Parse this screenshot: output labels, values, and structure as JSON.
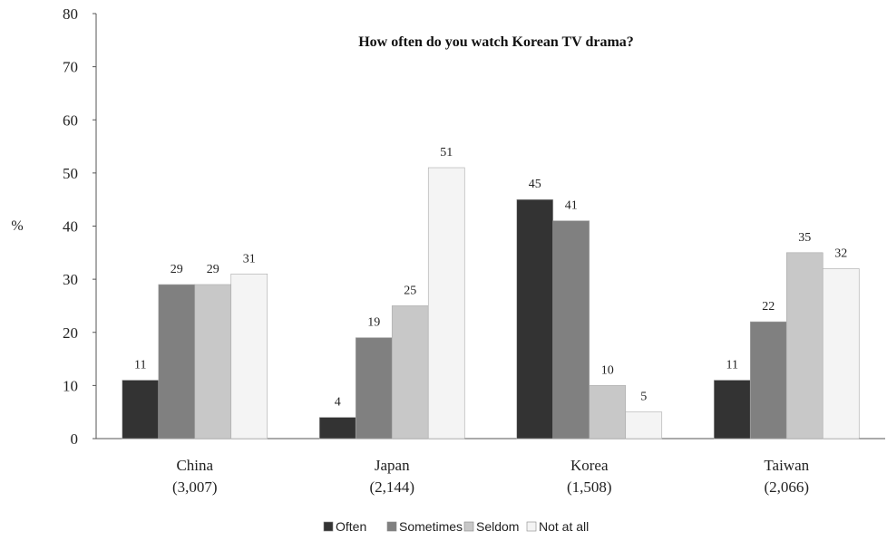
{
  "chart_data": {
    "type": "bar",
    "title": "How often do you watch Korean TV drama?",
    "xlabel": "",
    "ylabel": "%",
    "ylim": [
      0,
      80
    ],
    "yticks": [
      0,
      10,
      20,
      30,
      40,
      50,
      60,
      70,
      80
    ],
    "grid": false,
    "legend_position": "bottom",
    "categories": [
      "China",
      "Japan",
      "Korea",
      "Taiwan"
    ],
    "category_counts": [
      "(3,007)",
      "(2,144)",
      "(1,508)",
      "(2,066)"
    ],
    "series": [
      {
        "name": "Often",
        "color": "#333333",
        "values": [
          11,
          4,
          45,
          11
        ]
      },
      {
        "name": "Sometimes",
        "color": "#808080",
        "values": [
          29,
          19,
          41,
          22
        ]
      },
      {
        "name": "Seldom",
        "color": "#c8c8c8",
        "values": [
          29,
          25,
          10,
          35
        ]
      },
      {
        "name": "Not at all",
        "color": "#f4f4f4",
        "values": [
          31,
          51,
          5,
          32
        ]
      }
    ]
  }
}
